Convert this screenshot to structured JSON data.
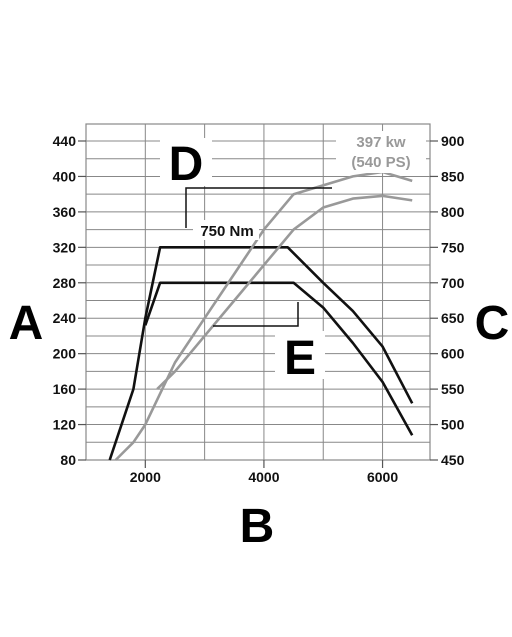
{
  "chart_data": {
    "type": "line",
    "axes": {
      "left_label": "A",
      "bottom_label": "B",
      "right_label": "C",
      "left_ylim": [
        80,
        440
      ],
      "right_ylim": [
        450,
        900
      ],
      "xlim": [
        1000,
        6800
      ],
      "left_ticks": [
        "80",
        "120",
        "160",
        "200",
        "240",
        "280",
        "320",
        "360",
        "400",
        "440"
      ],
      "right_ticks": [
        "450",
        "500",
        "550",
        "600",
        "650",
        "700",
        "750",
        "800",
        "850",
        "900"
      ],
      "x_ticks": [
        "2000",
        "4000",
        "6000"
      ],
      "grid": true
    },
    "labels": {
      "D": "D",
      "E": "E",
      "torque": "750 Nm",
      "power_kw": "397 kw",
      "power_ps": "(540 PS)"
    },
    "colors": {
      "torque": "#111111",
      "power": "#999999",
      "grid": "#888888"
    },
    "series": [
      {
        "axis": "right",
        "color": "torque",
        "points": [
          [
            1400,
            450
          ],
          [
            1800,
            550
          ],
          [
            2000,
            650
          ],
          [
            2250,
            750
          ],
          [
            4400,
            750
          ],
          [
            5000,
            700
          ],
          [
            5500,
            660
          ],
          [
            6000,
            610
          ],
          [
            6500,
            530
          ]
        ]
      },
      {
        "axis": "right",
        "color": "torque",
        "points": [
          [
            2000,
            640
          ],
          [
            2250,
            700
          ],
          [
            4500,
            700
          ],
          [
            5000,
            665
          ],
          [
            5500,
            615
          ],
          [
            6000,
            560
          ],
          [
            6500,
            485
          ]
        ]
      },
      {
        "axis": "left",
        "color": "power",
        "points": [
          [
            1500,
            80
          ],
          [
            1800,
            100
          ],
          [
            2000,
            120
          ],
          [
            2500,
            190
          ],
          [
            3000,
            240
          ],
          [
            3500,
            290
          ],
          [
            4000,
            340
          ],
          [
            4500,
            380
          ],
          [
            5500,
            400
          ],
          [
            6000,
            405
          ],
          [
            6500,
            395
          ]
        ]
      },
      {
        "axis": "left",
        "color": "power",
        "points": [
          [
            2200,
            160
          ],
          [
            2500,
            180
          ],
          [
            3000,
            220
          ],
          [
            3500,
            260
          ],
          [
            4000,
            300
          ],
          [
            4500,
            340
          ],
          [
            5000,
            365
          ],
          [
            5500,
            375
          ],
          [
            6000,
            378
          ],
          [
            6500,
            373
          ]
        ]
      }
    ]
  }
}
